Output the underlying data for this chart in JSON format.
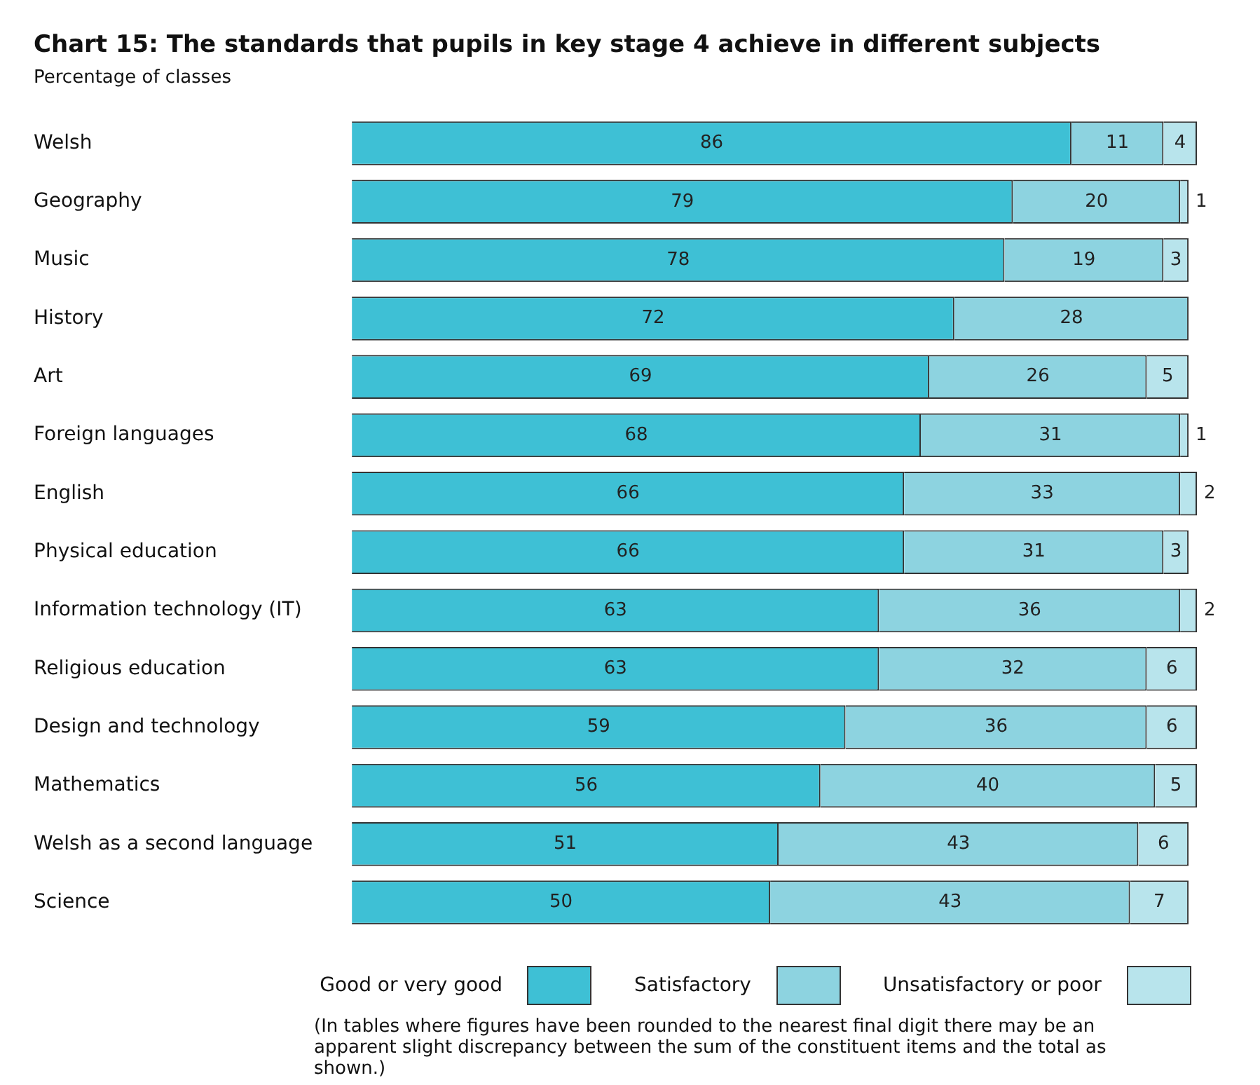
{
  "chart_data": {
    "type": "bar",
    "orientation": "horizontal",
    "stacked": true,
    "title": "Chart 15:  The standards that pupils in key stage 4 achieve in different subjects",
    "subtitle": "Percentage of classes",
    "categories": [
      "Welsh",
      "Geography",
      "Music",
      "History",
      "Art",
      "Foreign languages",
      "English",
      "Physical education",
      "Information technology (IT)",
      "Religious education",
      "Design and technology",
      "Mathematics",
      "Welsh as a second language",
      "Science"
    ],
    "series": [
      {
        "name": "Good or very good",
        "color": "#3ec0d5",
        "values": [
          86,
          79,
          78,
          72,
          69,
          68,
          66,
          66,
          63,
          63,
          59,
          56,
          51,
          50
        ]
      },
      {
        "name": "Satisfactory",
        "color": "#8dd3e0",
        "values": [
          11,
          20,
          19,
          28,
          26,
          31,
          33,
          31,
          36,
          32,
          36,
          40,
          43,
          43
        ]
      },
      {
        "name": "Unsatisfactory or poor",
        "color": "#b8e4ec",
        "values": [
          4,
          1,
          3,
          null,
          5,
          1,
          2,
          3,
          2,
          6,
          6,
          5,
          6,
          7
        ]
      }
    ],
    "xlim": [
      0,
      101
    ],
    "tick_labels": "y",
    "legend": "bottom",
    "data_labels": true,
    "annotations": [
      "(In tables where figures have been rounded to the nearest final digit there may be an apparent slight discrepancy between the sum of the constituent items and the total as shown.)"
    ]
  }
}
